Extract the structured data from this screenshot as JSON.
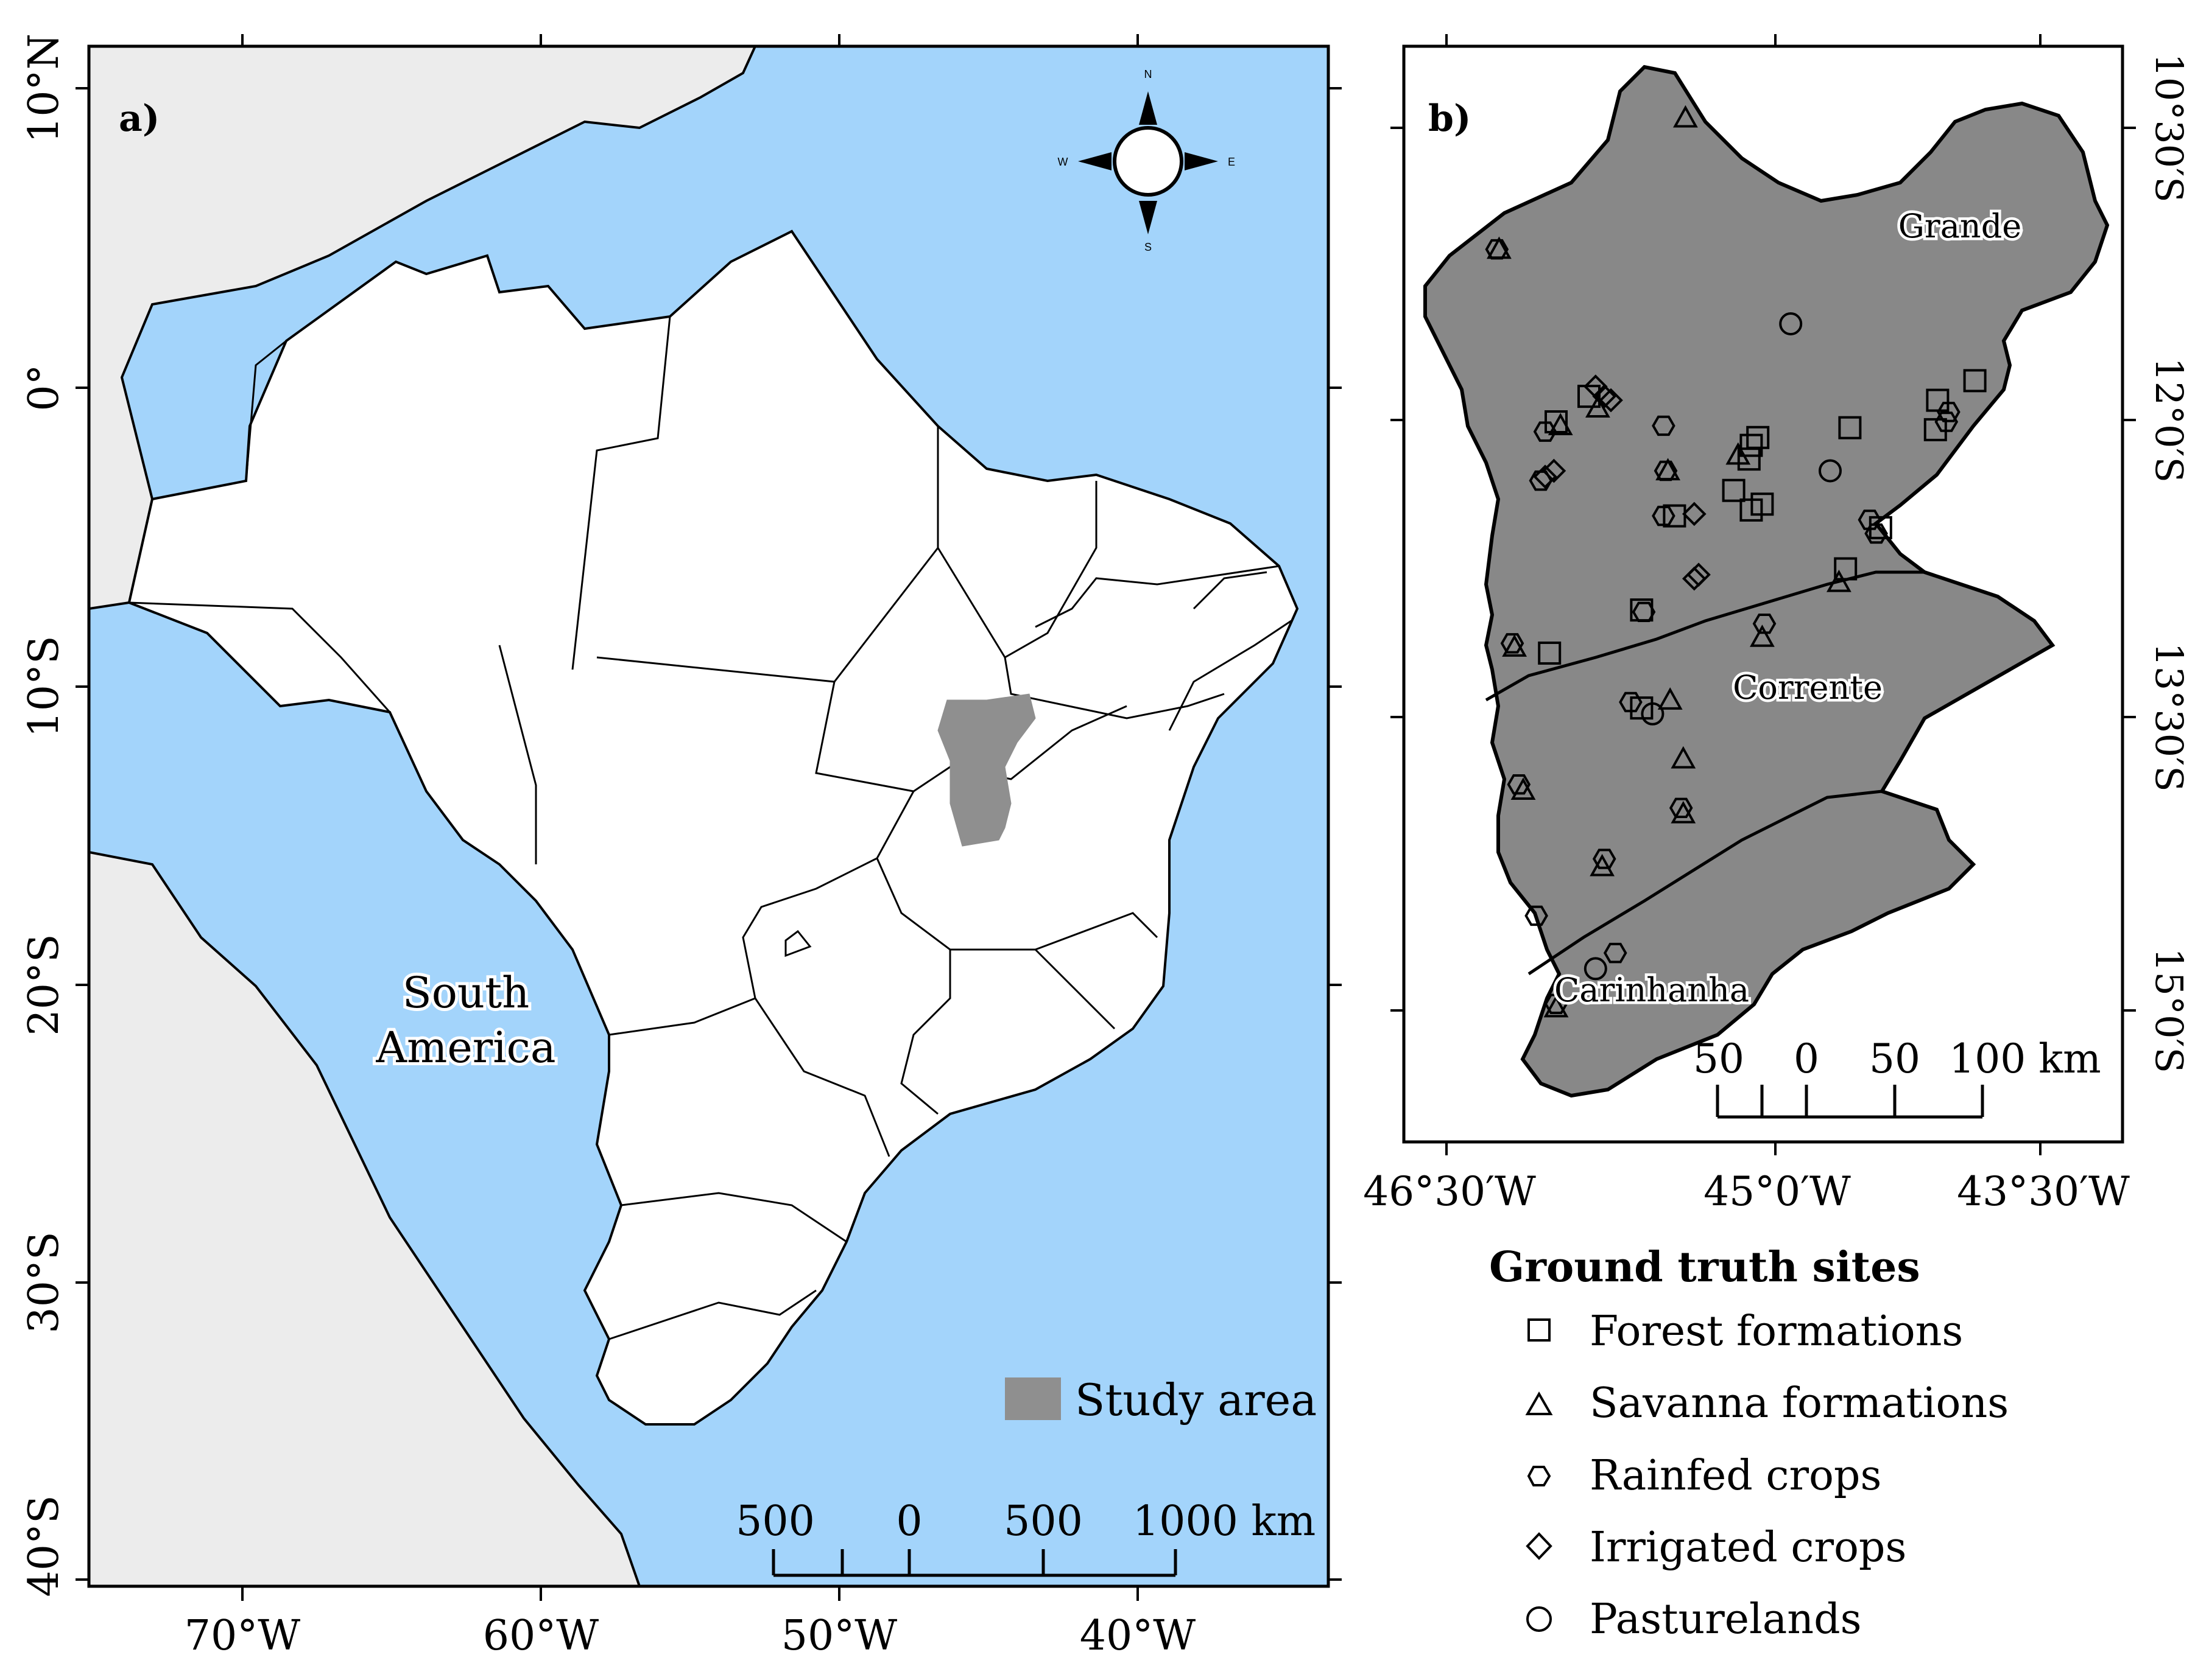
{
  "colors": {
    "ocean": "#a3d4fb",
    "land_other": "#ececec",
    "brazil_state": "#ffffff",
    "study_area": "#8f8f8f",
    "basin_fill": "#888888",
    "frame": "#000000"
  },
  "panel_a": {
    "label": "a)",
    "continent_label_line1": "South",
    "continent_label_line2": "America",
    "north_arrow": {
      "n": "N",
      "s": "S",
      "e": "E",
      "w": "W"
    },
    "legend": {
      "label": "Study area",
      "color": "#8f8f8f"
    },
    "scalebar": {
      "labels": [
        "500",
        "0",
        "500",
        "1000 km"
      ]
    },
    "lon_ticks": [
      "70°W",
      "60°W",
      "50°W",
      "40°W"
    ],
    "lat_ticks": [
      "10°N",
      "0°",
      "10°S",
      "20°S",
      "30°S",
      "40°S"
    ]
  },
  "panel_b": {
    "label": "b)",
    "basins": [
      "Grande",
      "Corrente",
      "Carinhanha"
    ],
    "scalebar": {
      "labels": [
        "50",
        "0",
        "50",
        "100 km"
      ]
    },
    "lon_ticks": [
      "46°30′W",
      "45°0′W",
      "43°30′W"
    ],
    "lat_ticks": [
      "10°30′S",
      "12°0′S",
      "13°30′S",
      "15°0′S"
    ]
  },
  "legend_b": {
    "title": "Ground truth sites",
    "items": [
      {
        "label": "Forest formations",
        "icon": "square-icon"
      },
      {
        "label": "Savanna formations",
        "icon": "triangle-icon"
      },
      {
        "label": "Rainfed crops",
        "icon": "hexagon-icon"
      },
      {
        "label": "Irrigated crops",
        "icon": "diamond-icon"
      },
      {
        "label": "Pasturelands",
        "icon": "circle-icon"
      }
    ]
  },
  "ground_truth_sites": [
    {
      "type": "triangle",
      "lon": -45.41,
      "lat": -10.45
    },
    {
      "type": "hexagon",
      "lon": -46.27,
      "lat": -11.12
    },
    {
      "type": "triangle",
      "lon": -46.26,
      "lat": -11.12
    },
    {
      "type": "circle",
      "lon": -44.93,
      "lat": -11.5
    },
    {
      "type": "square",
      "lon": -45.85,
      "lat": -11.87
    },
    {
      "type": "diamond",
      "lon": -45.82,
      "lat": -11.82
    },
    {
      "type": "diamond",
      "lon": -45.78,
      "lat": -11.87
    },
    {
      "type": "diamond",
      "lon": -45.75,
      "lat": -11.89
    },
    {
      "type": "triangle",
      "lon": -45.81,
      "lat": -11.93
    },
    {
      "type": "square",
      "lon": -46.0,
      "lat": -12.0
    },
    {
      "type": "triangle",
      "lon": -45.98,
      "lat": -12.02
    },
    {
      "type": "hexagon",
      "lon": -46.05,
      "lat": -12.05
    },
    {
      "type": "hexagon",
      "lon": -45.51,
      "lat": -12.02
    },
    {
      "type": "hexagon",
      "lon": -45.5,
      "lat": -12.25
    },
    {
      "type": "triangle",
      "lon": -45.49,
      "lat": -12.25
    },
    {
      "type": "diamond",
      "lon": -46.05,
      "lat": -12.28
    },
    {
      "type": "diamond",
      "lon": -46.01,
      "lat": -12.25
    },
    {
      "type": "hexagon",
      "lon": -46.07,
      "lat": -12.3
    },
    {
      "type": "square",
      "lon": -45.08,
      "lat": -12.08
    },
    {
      "type": "square",
      "lon": -45.11,
      "lat": -12.12
    },
    {
      "type": "square",
      "lon": -45.12,
      "lat": -12.19
    },
    {
      "type": "triangle",
      "lon": -45.17,
      "lat": -12.17
    },
    {
      "type": "square",
      "lon": -45.19,
      "lat": -12.35
    },
    {
      "type": "square",
      "lon": -45.11,
      "lat": -12.45
    },
    {
      "type": "square",
      "lon": -45.06,
      "lat": -12.42
    },
    {
      "type": "hexagon",
      "lon": -45.51,
      "lat": -12.48
    },
    {
      "type": "square",
      "lon": -45.46,
      "lat": -12.48
    },
    {
      "type": "diamond",
      "lon": -45.37,
      "lat": -12.47
    },
    {
      "type": "circle",
      "lon": -44.75,
      "lat": -12.25
    },
    {
      "type": "square",
      "lon": -44.66,
      "lat": -12.03
    },
    {
      "type": "square",
      "lon": -44.09,
      "lat": -11.79
    },
    {
      "type": "square",
      "lon": -44.26,
      "lat": -11.89
    },
    {
      "type": "hexagon",
      "lon": -44.21,
      "lat": -11.95
    },
    {
      "type": "hexagon",
      "lon": -44.22,
      "lat": -12.0
    },
    {
      "type": "square",
      "lon": -44.27,
      "lat": -12.04
    },
    {
      "type": "hexagon",
      "lon": -44.57,
      "lat": -12.5
    },
    {
      "type": "square",
      "lon": -44.52,
      "lat": -12.54
    },
    {
      "type": "hexagon",
      "lon": -44.54,
      "lat": -12.57
    },
    {
      "type": "square",
      "lon": -44.68,
      "lat": -12.75
    },
    {
      "type": "triangle",
      "lon": -44.71,
      "lat": -12.82
    },
    {
      "type": "diamond",
      "lon": -45.37,
      "lat": -12.8
    },
    {
      "type": "diamond",
      "lon": -45.35,
      "lat": -12.78
    },
    {
      "type": "square",
      "lon": -45.61,
      "lat": -12.96
    },
    {
      "type": "hexagon",
      "lon": -45.6,
      "lat": -12.97
    },
    {
      "type": "hexagon",
      "lon": -45.05,
      "lat": -13.03
    },
    {
      "type": "triangle",
      "lon": -45.06,
      "lat": -13.1
    },
    {
      "type": "hexagon",
      "lon": -46.2,
      "lat": -13.13
    },
    {
      "type": "triangle",
      "lon": -46.19,
      "lat": -13.15
    },
    {
      "type": "square",
      "lon": -46.03,
      "lat": -13.18
    },
    {
      "type": "hexagon",
      "lon": -45.66,
      "lat": -13.43
    },
    {
      "type": "square",
      "lon": -45.61,
      "lat": -13.46
    },
    {
      "type": "circle",
      "lon": -45.56,
      "lat": -13.49
    },
    {
      "type": "triangle",
      "lon": -45.48,
      "lat": -13.42
    },
    {
      "type": "triangle",
      "lon": -45.42,
      "lat": -13.72
    },
    {
      "type": "hexagon",
      "lon": -45.43,
      "lat": -13.97
    },
    {
      "type": "triangle",
      "lon": -45.42,
      "lat": -14.0
    },
    {
      "type": "hexagon",
      "lon": -46.17,
      "lat": -13.85
    },
    {
      "type": "triangle",
      "lon": -46.15,
      "lat": -13.88
    },
    {
      "type": "hexagon",
      "lon": -45.78,
      "lat": -14.23
    },
    {
      "type": "triangle",
      "lon": -45.79,
      "lat": -14.27
    },
    {
      "type": "hexagon",
      "lon": -46.09,
      "lat": -14.52
    },
    {
      "type": "circle",
      "lon": -45.82,
      "lat": -14.79
    },
    {
      "type": "hexagon",
      "lon": -45.73,
      "lat": -14.71
    },
    {
      "type": "hexagon",
      "lon": -46.0,
      "lat": -14.97
    },
    {
      "type": "triangle",
      "lon": -46.0,
      "lat": -14.99
    }
  ]
}
